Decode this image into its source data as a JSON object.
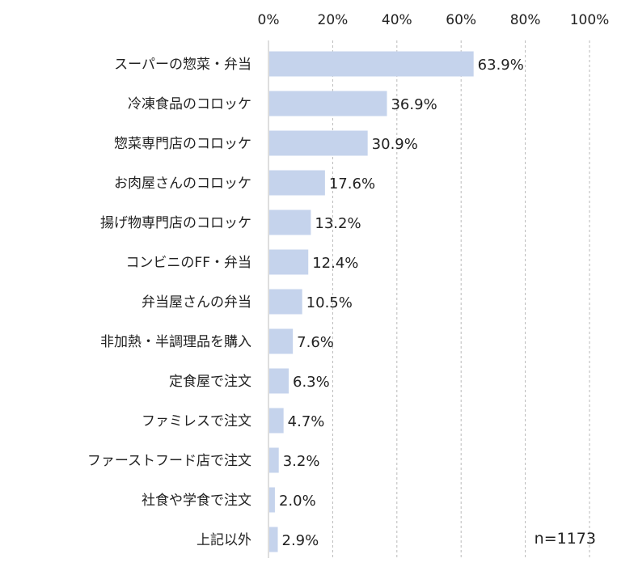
{
  "chart_data": {
    "type": "bar",
    "orientation": "horizontal",
    "categories": [
      "スーパーの惣菜・弁当",
      "冷凍食品のコロッケ",
      "惣菜専門店のコロッケ",
      "お肉屋さんのコロッケ",
      "揚げ物専門店のコロッケ",
      "コンビニのFF・弁当",
      "弁当屋さんの弁当",
      "非加熱・半調理品を購入",
      "定食屋で注文",
      "ファミレスで注文",
      "ファーストフード店で注文",
      "社食や学食で注文",
      "上記以外"
    ],
    "values": [
      63.9,
      36.9,
      30.9,
      17.6,
      13.2,
      12.4,
      10.5,
      7.6,
      6.3,
      4.7,
      3.2,
      2.0,
      2.9
    ],
    "value_labels": [
      "63.9%",
      "36.9%",
      "30.9%",
      "17.6%",
      "13.2%",
      "12.4%",
      "10.5%",
      "7.6%",
      "6.3%",
      "4.7%",
      "3.2%",
      "2.0%",
      "2.9%"
    ],
    "x_ticks": [
      "0%",
      "20%",
      "40%",
      "60%",
      "80%",
      "100%"
    ],
    "xlim": [
      0,
      100
    ],
    "grid": true,
    "bar_color": "#c5d3ec",
    "title": "",
    "xlabel": "",
    "ylabel": "",
    "annotation": "n=1173"
  }
}
